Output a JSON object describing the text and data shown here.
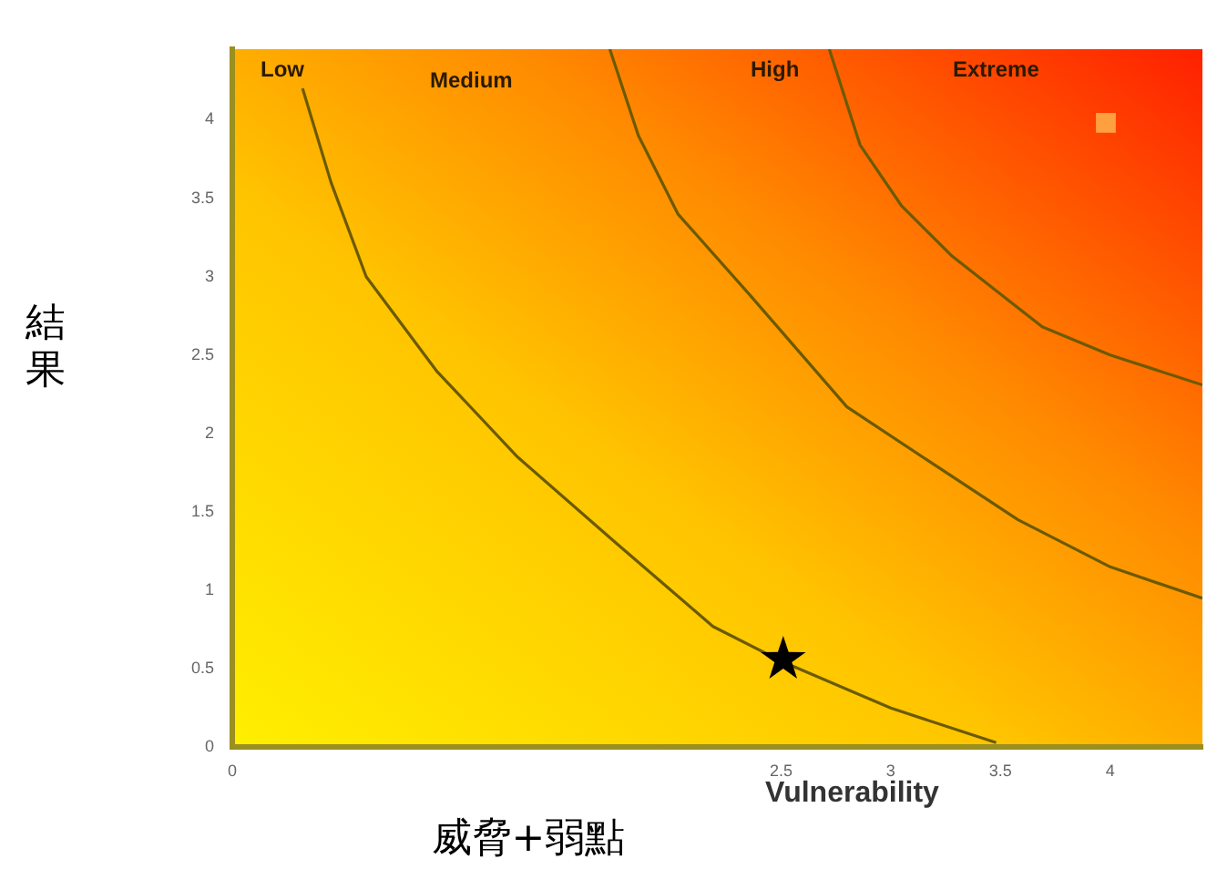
{
  "chart_data": {
    "type": "line",
    "xlabel": "威脅+弱點",
    "ylabel": "結果",
    "xlim": [
      0,
      4.42
    ],
    "xticks": [
      0,
      2.5,
      3,
      3.5,
      4
    ],
    "ylim": [
      0,
      4.45
    ],
    "yticks": [
      0,
      0.5,
      1,
      1.5,
      2,
      2.5,
      3,
      3.5,
      4
    ],
    "grid": false,
    "legend": false,
    "series": [
      {
        "marker": "none",
        "color": "#6b5a00",
        "x": [
          0.32,
          0.45,
          0.61,
          0.93,
          1.3,
          1.75,
          2.19,
          2.5,
          3.0,
          3.48
        ],
        "values": [
          4.2,
          3.6,
          3.0,
          2.4,
          1.85,
          1.3,
          0.77,
          0.55,
          0.25,
          0.03
        ]
      },
      {
        "marker": "none",
        "color": "#6b5a00",
        "x": [
          1.72,
          1.85,
          2.03,
          2.36,
          2.8,
          3.2,
          3.58,
          4.0,
          4.42
        ],
        "values": [
          4.45,
          3.9,
          3.4,
          2.88,
          2.17,
          1.8,
          1.45,
          1.15,
          0.95
        ]
      },
      {
        "marker": "none",
        "color": "#6b5a00",
        "x": [
          2.72,
          2.86,
          3.05,
          3.28,
          3.69,
          4.0,
          4.42
        ],
        "values": [
          4.45,
          3.84,
          3.45,
          3.13,
          2.68,
          2.5,
          2.31
        ]
      },
      {
        "type": "scatter",
        "marker": "star",
        "color": "#000000",
        "x": [
          2.51
        ],
        "values": [
          0.56
        ]
      },
      {
        "type": "scatter",
        "marker": "square",
        "color": "#ffa040",
        "x": [
          3.98
        ],
        "values": [
          3.98
        ]
      }
    ],
    "annotations": [
      "Low",
      "Medium",
      "High",
      "Extreme",
      "Vulnerability"
    ]
  }
}
